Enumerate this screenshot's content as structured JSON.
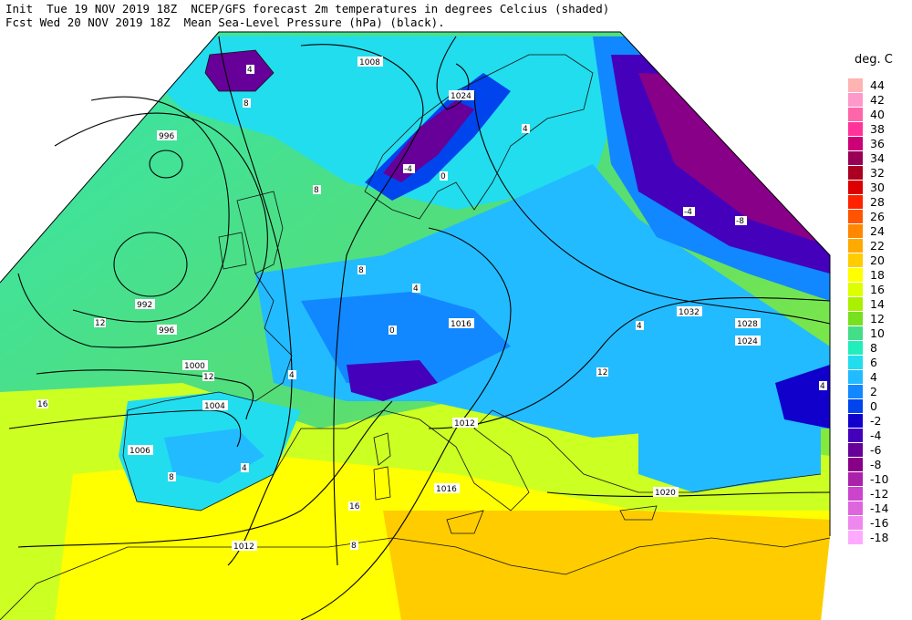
{
  "header": {
    "line1": "Init  Tue 19 NOV 2019 18Z  NCEP/GFS forecast 2m temperatures in degrees Celcius (shaded)",
    "line2": "Fcst Wed 20 NOV 2019 18Z  Mean Sea-Level Pressure (hPa) (black)."
  },
  "legend": {
    "title": "deg. C",
    "items": [
      {
        "label": "44",
        "color": "#ffb3b3"
      },
      {
        "label": "42",
        "color": "#ff99cc"
      },
      {
        "label": "40",
        "color": "#ff66aa"
      },
      {
        "label": "38",
        "color": "#ff3399"
      },
      {
        "label": "36",
        "color": "#cc0077"
      },
      {
        "label": "34",
        "color": "#990055"
      },
      {
        "label": "32",
        "color": "#aa0022"
      },
      {
        "label": "30",
        "color": "#dd0000"
      },
      {
        "label": "28",
        "color": "#ff2200"
      },
      {
        "label": "26",
        "color": "#ff5500"
      },
      {
        "label": "24",
        "color": "#ff8800"
      },
      {
        "label": "22",
        "color": "#ffaa00"
      },
      {
        "label": "20",
        "color": "#ffcc00"
      },
      {
        "label": "18",
        "color": "#ffff00"
      },
      {
        "label": "16",
        "color": "#ddff00"
      },
      {
        "label": "14",
        "color": "#aaf000"
      },
      {
        "label": "12",
        "color": "#77e020"
      },
      {
        "label": "10",
        "color": "#44dd88"
      },
      {
        "label": "8",
        "color": "#22eebb"
      },
      {
        "label": "6",
        "color": "#22ddee"
      },
      {
        "label": "4",
        "color": "#22bbff"
      },
      {
        "label": "2",
        "color": "#1188ff"
      },
      {
        "label": "0",
        "color": "#0044ee"
      },
      {
        "label": "-2",
        "color": "#1100cc"
      },
      {
        "label": "-4",
        "color": "#4400bb"
      },
      {
        "label": "-6",
        "color": "#660099"
      },
      {
        "label": "-8",
        "color": "#880088"
      },
      {
        "label": "-10",
        "color": "#aa22aa"
      },
      {
        "label": "-12",
        "color": "#cc44cc"
      },
      {
        "label": "-14",
        "color": "#dd66dd"
      },
      {
        "label": "-16",
        "color": "#ee88ee"
      },
      {
        "label": "-18",
        "color": "#ffaaff"
      }
    ]
  },
  "isobar_labels": [
    "1008",
    "996",
    "992",
    "996",
    "1000",
    "1004",
    "1006",
    "1012",
    "1016",
    "1016",
    "1012",
    "1024",
    "1032",
    "1028",
    "1024",
    "1020"
  ],
  "temp_labels": [
    "8",
    "4",
    "-4",
    "0",
    "4",
    "8",
    "12",
    "16",
    "8",
    "4",
    "12",
    "4",
    "-4",
    "-8",
    "4",
    "12",
    "8",
    "16",
    "8",
    "4",
    "0",
    "4"
  ]
}
